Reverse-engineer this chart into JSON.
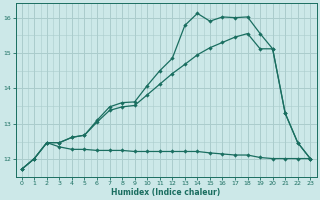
{
  "xlabel": "Humidex (Indice chaleur)",
  "bg_color": "#cce8e8",
  "grid_color": "#aacccc",
  "line_color": "#1a6e60",
  "xlim": [
    -0.5,
    23.5
  ],
  "ylim": [
    11.5,
    16.4
  ],
  "xticks": [
    0,
    1,
    2,
    3,
    4,
    5,
    6,
    7,
    8,
    9,
    10,
    11,
    12,
    13,
    14,
    15,
    16,
    17,
    18,
    19,
    20,
    21,
    22,
    23
  ],
  "yticks": [
    12,
    13,
    14,
    15,
    16
  ],
  "line1_x": [
    0,
    1,
    2,
    3,
    4,
    5,
    6,
    7,
    8,
    9,
    10,
    11,
    12,
    13,
    14,
    15,
    16,
    17,
    18,
    19,
    20,
    21,
    22,
    23
  ],
  "line1_y": [
    11.72,
    12.02,
    12.47,
    12.47,
    12.62,
    12.68,
    13.1,
    13.48,
    13.6,
    13.62,
    14.08,
    14.5,
    14.85,
    15.78,
    16.12,
    15.9,
    16.02,
    16.0,
    16.02,
    15.55,
    15.12,
    13.3,
    12.47,
    12.02
  ],
  "line2_x": [
    0,
    1,
    2,
    3,
    4,
    5,
    6,
    7,
    8,
    9,
    10,
    11,
    12,
    13,
    14,
    15,
    16,
    17,
    18,
    19,
    20,
    21,
    22,
    23
  ],
  "line2_y": [
    11.72,
    12.02,
    12.47,
    12.47,
    12.62,
    12.68,
    13.05,
    13.38,
    13.48,
    13.52,
    13.82,
    14.12,
    14.42,
    14.68,
    14.95,
    15.15,
    15.3,
    15.45,
    15.55,
    15.12,
    15.12,
    13.3,
    12.47,
    12.02
  ],
  "line3_x": [
    0,
    1,
    2,
    3,
    4,
    5,
    6,
    7,
    8,
    9,
    10,
    11,
    12,
    13,
    14,
    15,
    16,
    17,
    18,
    19,
    20,
    21,
    22,
    23
  ],
  "line3_y": [
    11.72,
    12.02,
    12.47,
    12.35,
    12.28,
    12.28,
    12.25,
    12.25,
    12.25,
    12.22,
    12.22,
    12.22,
    12.22,
    12.22,
    12.22,
    12.18,
    12.15,
    12.12,
    12.12,
    12.05,
    12.02,
    12.02,
    12.02,
    12.02
  ]
}
